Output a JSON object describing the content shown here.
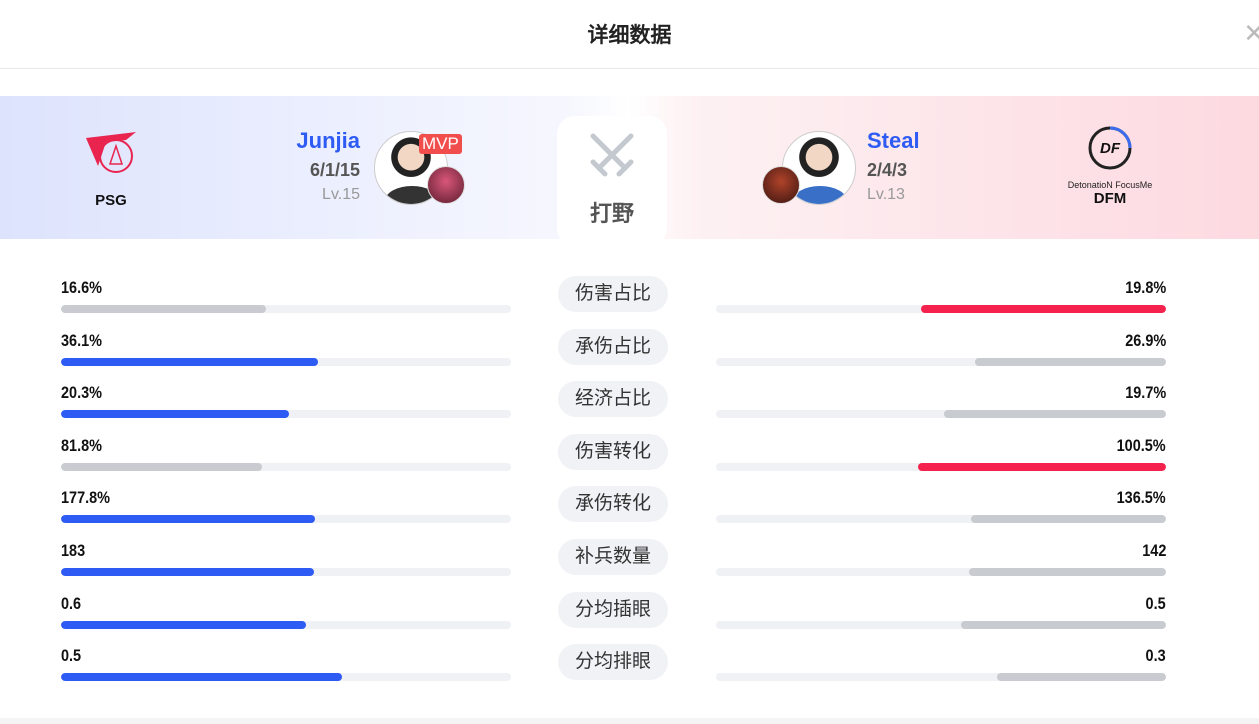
{
  "title": "详细数据",
  "role": "打野",
  "colors": {
    "blue": "#2f5bf5",
    "red": "#f5224d",
    "gray": "#c8cbd0"
  },
  "left": {
    "team": "PSG",
    "player": "Junjia",
    "kda": "6/1/15",
    "level": "Lv.15",
    "badge": "MVP"
  },
  "right": {
    "team": "DFM",
    "team_logo_text": "DetonatioN FocusMe",
    "player": "Steal",
    "kda": "2/4/3",
    "level": "Lv.13"
  },
  "stats": [
    {
      "label": "伤害占比",
      "left": "16.6%",
      "right": "19.8%",
      "left_fill": 0.456,
      "right_fill": 0.544,
      "winner": "right"
    },
    {
      "label": "承伤占比",
      "left": "36.1%",
      "right": "26.9%",
      "left_fill": 0.571,
      "right_fill": 0.424,
      "winner": "left"
    },
    {
      "label": "经济占比",
      "left": "20.3%",
      "right": "19.7%",
      "left_fill": 0.507,
      "right_fill": 0.493,
      "winner": "left"
    },
    {
      "label": "伤害转化",
      "left": "81.8%",
      "right": "100.5%",
      "left_fill": 0.447,
      "right_fill": 0.551,
      "winner": "right"
    },
    {
      "label": "承伤转化",
      "left": "177.8%",
      "right": "136.5%",
      "left_fill": 0.564,
      "right_fill": 0.433,
      "winner": "left"
    },
    {
      "label": "补兵数量",
      "left": "183",
      "right": "142",
      "left_fill": 0.562,
      "right_fill": 0.438,
      "winner": "left"
    },
    {
      "label": "分均插眼",
      "left": "0.6",
      "right": "0.5",
      "left_fill": 0.544,
      "right_fill": 0.456,
      "winner": "left"
    },
    {
      "label": "分均排眼",
      "left": "0.5",
      "right": "0.3",
      "left_fill": 0.624,
      "right_fill": 0.376,
      "winner": "left"
    }
  ]
}
